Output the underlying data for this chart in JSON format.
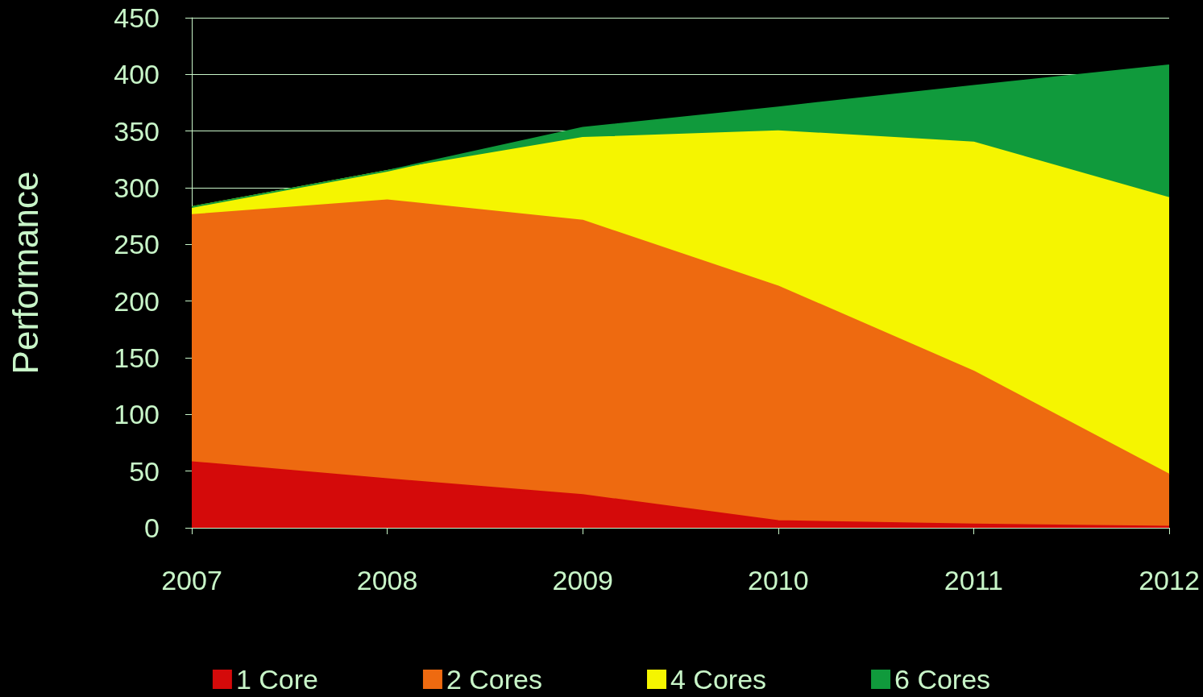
{
  "chart_data": {
    "type": "area",
    "stacked": true,
    "ylabel": "Performance",
    "categories": [
      "2007",
      "2008",
      "2009",
      "2010",
      "2011",
      "2012"
    ],
    "series": [
      {
        "name": "1 Core",
        "color": "#d40a0a",
        "values": [
          58,
          43,
          29,
          6,
          3,
          1
        ]
      },
      {
        "name": "2 Cores",
        "color": "#ee6a10",
        "values": [
          218,
          246,
          242,
          207,
          135,
          46
        ]
      },
      {
        "name": "4 Cores",
        "color": "#f5f500",
        "values": [
          7,
          26,
          73,
          137,
          202,
          244
        ]
      },
      {
        "name": "6 Cores",
        "color": "#109a3c",
        "values": [
          0,
          0,
          9,
          21,
          50,
          117
        ]
      }
    ],
    "ylim": [
      0,
      450
    ],
    "yticks": [
      0,
      50,
      100,
      150,
      200,
      250,
      300,
      350,
      400,
      450
    ],
    "grid": "y",
    "legend": "bottom",
    "marker": "none"
  }
}
